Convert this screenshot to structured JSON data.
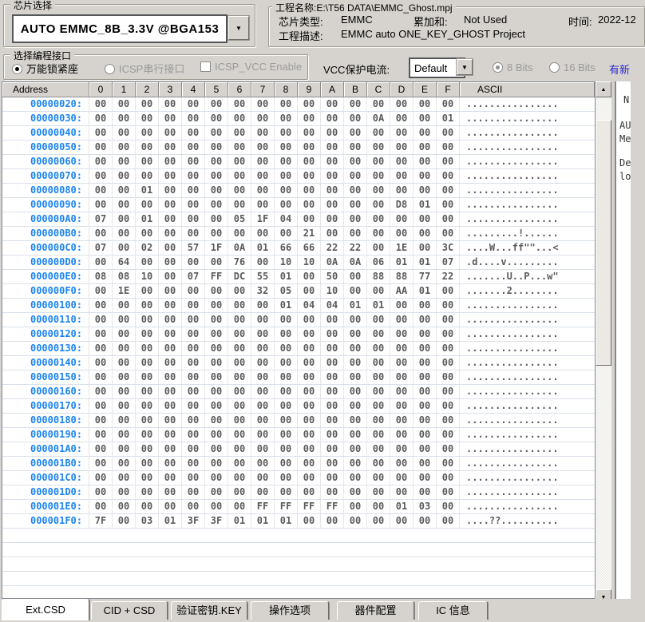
{
  "chip_select": {
    "title": "芯片选择",
    "value": "AUTO EMMC_8B_3.3V @BGA153"
  },
  "project": {
    "title": "工程名称:E:\\T56 DATA\\EMMC_Ghost.mpj",
    "chip_type_label": "芯片类型:",
    "chip_type_value": "EMMC",
    "checksum_label": "累加和:",
    "checksum_value": "Not Used",
    "time_label": "时间:",
    "time_value": "2022-12",
    "desc_label": "工程描述:",
    "desc_value": "EMMC auto ONE_KEY_GHOST Project"
  },
  "interface": {
    "title": "选择编程接口",
    "radio_socket": "万能锁紧座",
    "radio_icsp": "ICSP串行接口",
    "checkbox_icsp_vcc": "ICSP_VCC Enable"
  },
  "vcc": {
    "label": "VCC保护电流:",
    "value": "Default",
    "radio_8bits": "8 Bits",
    "radio_16bits": "16 Bits",
    "update_link": "有新"
  },
  "icons": {
    "dropdown_arrow": "▼",
    "scroll_up": "▲",
    "scroll_down": "▼"
  },
  "colors": {
    "address_blue": "#1b84f0",
    "link_blue": "#2a2ace",
    "window_bg": "#d6d3ce"
  },
  "hex": {
    "headers": [
      "Address",
      "0",
      "1",
      "2",
      "3",
      "4",
      "5",
      "6",
      "7",
      "8",
      "9",
      "A",
      "B",
      "C",
      "D",
      "E",
      "F",
      "ASCII"
    ],
    "rows": [
      {
        "addr": "00000020:",
        "bytes": "00 00 00 00 00 00 00 00 00 00 00 00 00 00 00 00",
        "ascii": "................"
      },
      {
        "addr": "00000030:",
        "bytes": "00 00 00 00 00 00 00 00 00 00 00 00 0A 00 00 01",
        "ascii": "................"
      },
      {
        "addr": "00000040:",
        "bytes": "00 00 00 00 00 00 00 00 00 00 00 00 00 00 00 00",
        "ascii": "................"
      },
      {
        "addr": "00000050:",
        "bytes": "00 00 00 00 00 00 00 00 00 00 00 00 00 00 00 00",
        "ascii": "................"
      },
      {
        "addr": "00000060:",
        "bytes": "00 00 00 00 00 00 00 00 00 00 00 00 00 00 00 00",
        "ascii": "................"
      },
      {
        "addr": "00000070:",
        "bytes": "00 00 00 00 00 00 00 00 00 00 00 00 00 00 00 00",
        "ascii": "................"
      },
      {
        "addr": "00000080:",
        "bytes": "00 00 01 00 00 00 00 00 00 00 00 00 00 00 00 00",
        "ascii": "................"
      },
      {
        "addr": "00000090:",
        "bytes": "00 00 00 00 00 00 00 00 00 00 00 00 00 D8 01 00",
        "ascii": "................"
      },
      {
        "addr": "000000A0:",
        "bytes": "07 00 01 00 00 00 05 1F 04 00 00 00 00 00 00 00",
        "ascii": "................"
      },
      {
        "addr": "000000B0:",
        "bytes": "00 00 00 00 00 00 00 00 00 21 00 00 00 00 00 00",
        "ascii": ".........!......"
      },
      {
        "addr": "000000C0:",
        "bytes": "07 00 02 00 57 1F 0A 01 66 66 22 22 00 1E 00 3C",
        "ascii": "....W...ff\"\"...<"
      },
      {
        "addr": "000000D0:",
        "bytes": "00 64 00 00 00 00 76 00 10 10 0A 0A 06 01 01 07",
        "ascii": ".d....v........."
      },
      {
        "addr": "000000E0:",
        "bytes": "08 08 10 00 07 FF DC 55 01 00 50 00 88 88 77 22",
        "ascii": ".......U..P...w\""
      },
      {
        "addr": "000000F0:",
        "bytes": "00 1E 00 00 00 00 00 32 05 00 10 00 00 AA 01 00",
        "ascii": ".......2........"
      },
      {
        "addr": "00000100:",
        "bytes": "00 00 00 00 00 00 00 00 01 04 04 01 01 00 00 00",
        "ascii": "................"
      },
      {
        "addr": "00000110:",
        "bytes": "00 00 00 00 00 00 00 00 00 00 00 00 00 00 00 00",
        "ascii": "................"
      },
      {
        "addr": "00000120:",
        "bytes": "00 00 00 00 00 00 00 00 00 00 00 00 00 00 00 00",
        "ascii": "................"
      },
      {
        "addr": "00000130:",
        "bytes": "00 00 00 00 00 00 00 00 00 00 00 00 00 00 00 00",
        "ascii": "................"
      },
      {
        "addr": "00000140:",
        "bytes": "00 00 00 00 00 00 00 00 00 00 00 00 00 00 00 00",
        "ascii": "................"
      },
      {
        "addr": "00000150:",
        "bytes": "00 00 00 00 00 00 00 00 00 00 00 00 00 00 00 00",
        "ascii": "................"
      },
      {
        "addr": "00000160:",
        "bytes": "00 00 00 00 00 00 00 00 00 00 00 00 00 00 00 00",
        "ascii": "................"
      },
      {
        "addr": "00000170:",
        "bytes": "00 00 00 00 00 00 00 00 00 00 00 00 00 00 00 00",
        "ascii": "................"
      },
      {
        "addr": "00000180:",
        "bytes": "00 00 00 00 00 00 00 00 00 00 00 00 00 00 00 00",
        "ascii": "................"
      },
      {
        "addr": "00000190:",
        "bytes": "00 00 00 00 00 00 00 00 00 00 00 00 00 00 00 00",
        "ascii": "................"
      },
      {
        "addr": "000001A0:",
        "bytes": "00 00 00 00 00 00 00 00 00 00 00 00 00 00 00 00",
        "ascii": "................"
      },
      {
        "addr": "000001B0:",
        "bytes": "00 00 00 00 00 00 00 00 00 00 00 00 00 00 00 00",
        "ascii": "................"
      },
      {
        "addr": "000001C0:",
        "bytes": "00 00 00 00 00 00 00 00 00 00 00 00 00 00 00 00",
        "ascii": "................"
      },
      {
        "addr": "000001D0:",
        "bytes": "00 00 00 00 00 00 00 00 00 00 00 00 00 00 00 00",
        "ascii": "................"
      },
      {
        "addr": "000001E0:",
        "bytes": "00 00 00 00 00 00 00 FF FF FF FF 00 00 01 03 00",
        "ascii": "................"
      },
      {
        "addr": "000001F0:",
        "bytes": "7F 00 03 01 3F 3F 01 01 01 00 00 00 00 00 00 00",
        "ascii": "....??.........."
      }
    ]
  },
  "right_panel": {
    "fragments": [
      "N",
      "AU",
      "Me",
      "De",
      "lo"
    ]
  },
  "tabs": [
    {
      "name": "tab-ext-csd",
      "label": "Ext.CSD",
      "active": true
    },
    {
      "name": "tab-cid-csd",
      "label": "CID + CSD",
      "active": false
    },
    {
      "name": "tab-verify-key",
      "label": "验证密钥.KEY",
      "active": false
    },
    {
      "name": "tab-operation-options",
      "label": "操作选项",
      "active": false
    },
    {
      "name": "tab-device-config",
      "label": "器件配置",
      "active": false
    },
    {
      "name": "tab-ic-info",
      "label": "IC 信息",
      "active": false
    }
  ]
}
